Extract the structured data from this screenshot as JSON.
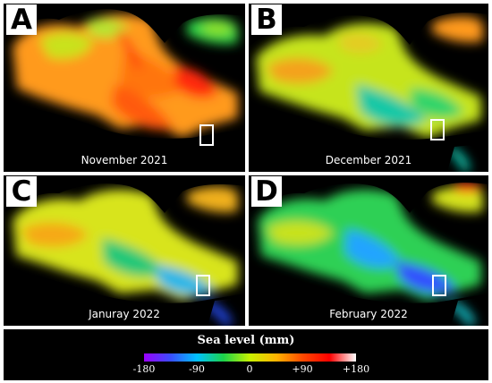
{
  "panels": [
    {
      "letter": "A",
      "caption": "November 2021",
      "anomaly": "high"
    },
    {
      "letter": "B",
      "caption": "December 2021",
      "anomaly": "mid-high"
    },
    {
      "letter": "C",
      "caption": "Januray 2022",
      "anomaly": "mid"
    },
    {
      "letter": "D",
      "caption": "February 2022",
      "anomaly": "low"
    }
  ],
  "legend": {
    "title": "Sea level (mm)",
    "ticks": [
      "-180",
      "-90",
      "0",
      "+90",
      "+180"
    ],
    "range": [
      -180,
      180
    ],
    "colors": [
      "#9b00ff",
      "#3a4dff",
      "#00c2ff",
      "#1cd34a",
      "#c9f200",
      "#ffb300",
      "#ff4800",
      "#ff0000",
      "#ffffff"
    ]
  }
}
